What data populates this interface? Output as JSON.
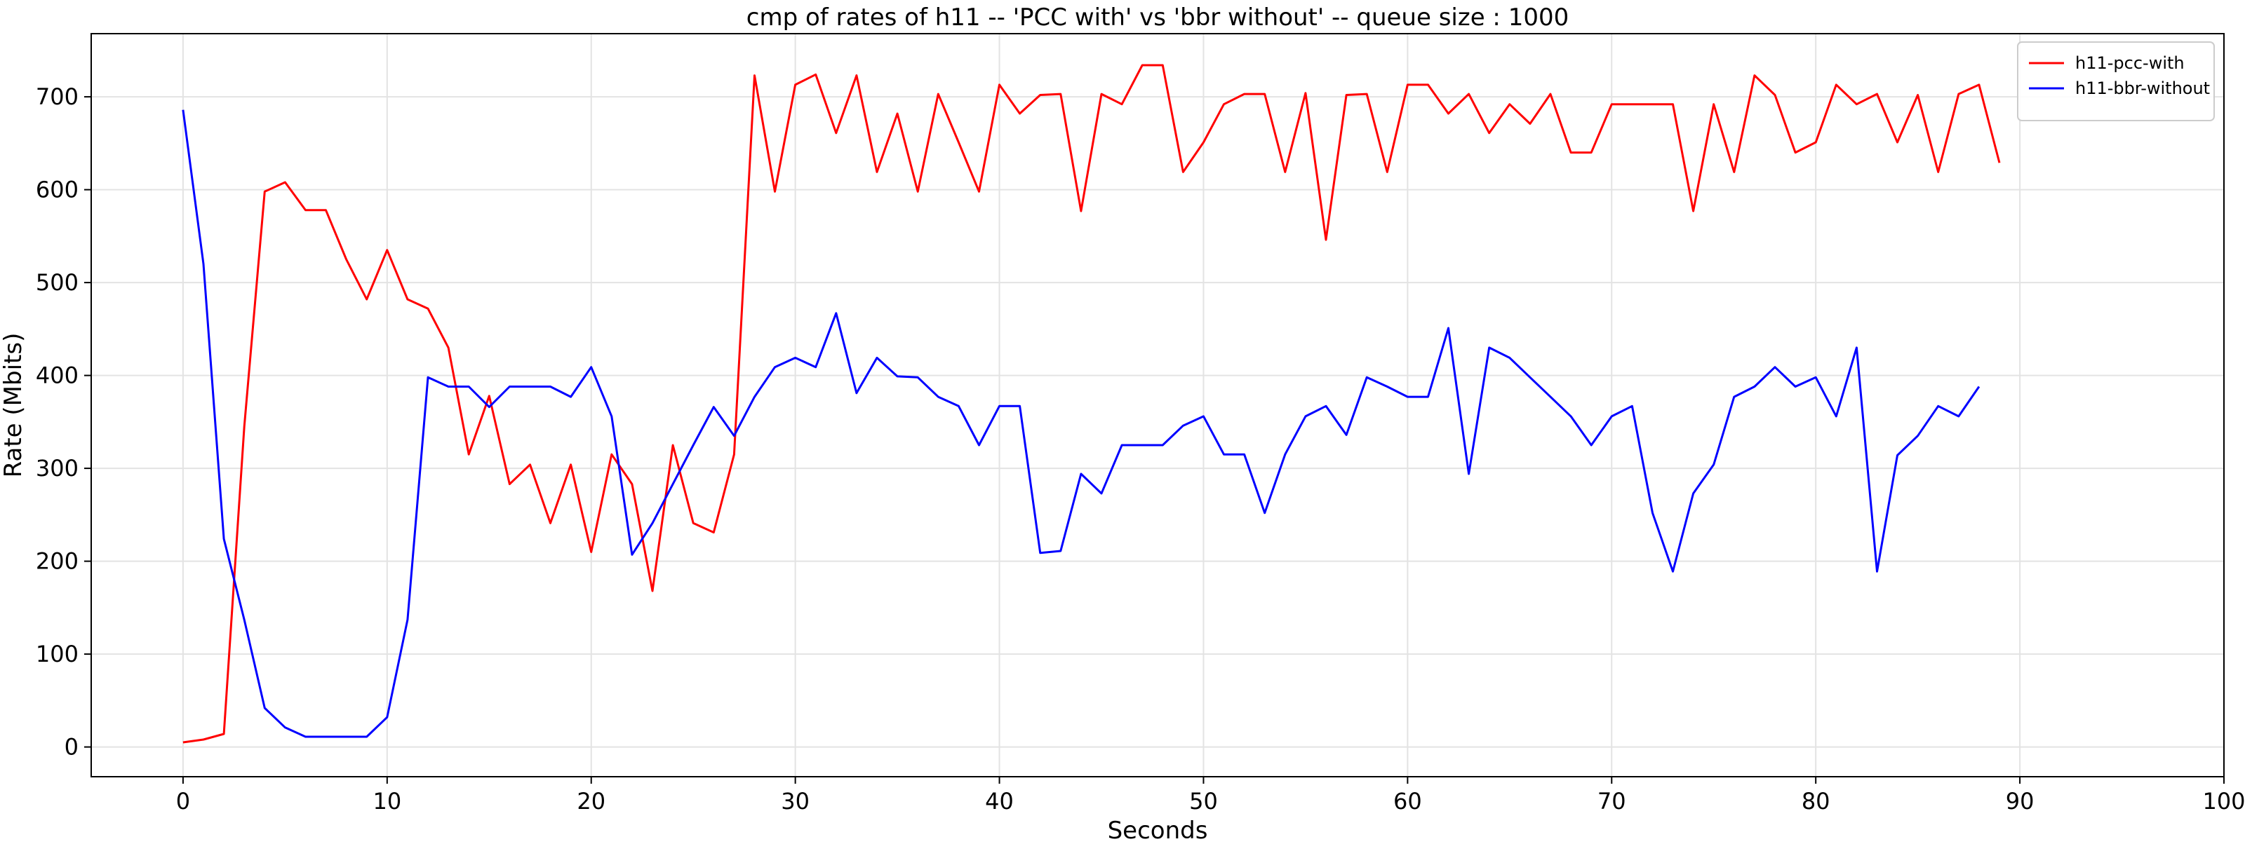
{
  "chart_data": {
    "type": "line",
    "title": "cmp of rates of h11 -- 'PCC with' vs 'bbr without' -- queue size : 1000",
    "xlabel": "Seconds",
    "ylabel": "Rate (Mbits)",
    "xlim": [
      -4.5,
      100
    ],
    "ylim": [
      -32,
      768
    ],
    "xticks": [
      0,
      10,
      20,
      30,
      40,
      50,
      60,
      70,
      80,
      90,
      100
    ],
    "yticks": [
      0,
      100,
      200,
      300,
      400,
      500,
      600,
      700
    ],
    "grid": true,
    "legend_position": "top-right",
    "series": [
      {
        "name": "h11-pcc-with",
        "color": "#ff0000",
        "x": [
          0,
          1,
          2,
          3,
          4,
          5,
          6,
          7,
          8,
          9,
          10,
          11,
          12,
          13,
          14,
          15,
          16,
          17,
          18,
          19,
          20,
          21,
          22,
          23,
          24,
          25,
          26,
          27,
          28,
          29,
          30,
          31,
          32,
          33,
          34,
          35,
          36,
          37,
          38,
          39,
          40,
          41,
          42,
          43,
          44,
          45,
          46,
          47,
          48,
          49,
          50,
          51,
          52,
          53,
          54,
          55,
          56,
          57,
          58,
          59,
          60,
          61,
          62,
          63,
          64,
          65,
          66,
          67,
          68,
          69,
          70,
          71,
          72,
          73,
          74,
          75,
          76,
          77,
          78,
          79,
          80,
          81,
          82,
          83,
          84,
          85,
          86,
          87,
          88,
          89
        ],
        "y": [
          5,
          8,
          14,
          345,
          598,
          608,
          578,
          578,
          525,
          482,
          535,
          482,
          472,
          430,
          315,
          378,
          283,
          304,
          241,
          304,
          210,
          315,
          283,
          168,
          325,
          241,
          231,
          315,
          723,
          598,
          713,
          724,
          661,
          723,
          619,
          682,
          598,
          703,
          651,
          598,
          713,
          682,
          702,
          703,
          577,
          703,
          692,
          734,
          734,
          619,
          651,
          692,
          703,
          703,
          619,
          704,
          546,
          702,
          703,
          619,
          713,
          713,
          682,
          703,
          661,
          692,
          671,
          703,
          640,
          640,
          692,
          692,
          692,
          692,
          577,
          692,
          619,
          723,
          702,
          640,
          651,
          713,
          692,
          703,
          651,
          702,
          619,
          703,
          713,
          629
        ]
      },
      {
        "name": "h11-bbr-without",
        "color": "#0000ff",
        "x": [
          0,
          1,
          2,
          3,
          4,
          5,
          6,
          7,
          8,
          9,
          10,
          11,
          12,
          13,
          14,
          15,
          16,
          17,
          18,
          19,
          20,
          21,
          22,
          23,
          24,
          25,
          26,
          27,
          28,
          29,
          30,
          31,
          32,
          33,
          34,
          35,
          36,
          37,
          38,
          39,
          40,
          41,
          42,
          43,
          44,
          45,
          46,
          47,
          48,
          49,
          50,
          51,
          52,
          53,
          54,
          55,
          56,
          57,
          58,
          59,
          60,
          61,
          62,
          63,
          64,
          65,
          66,
          67,
          68,
          69,
          70,
          71,
          72,
          73,
          74,
          75,
          76,
          77,
          78,
          79,
          80,
          81,
          82,
          83,
          84,
          85,
          86,
          87,
          88
        ],
        "y": [
          686,
          520,
          224,
          137,
          42,
          21,
          11,
          11,
          11,
          11,
          32,
          137,
          398,
          388,
          388,
          366,
          388,
          388,
          388,
          377,
          409,
          356,
          207,
          241,
          283,
          325,
          366,
          335,
          377,
          409,
          419,
          409,
          467,
          381,
          419,
          399,
          398,
          377,
          367,
          325,
          367,
          367,
          209,
          211,
          294,
          273,
          325,
          325,
          325,
          346,
          356,
          315,
          315,
          252,
          315,
          356,
          367,
          336,
          398,
          388,
          377,
          377,
          451,
          294,
          430,
          419,
          398,
          377,
          356,
          325,
          356,
          367,
          252,
          189,
          273,
          304,
          377,
          388,
          409,
          388,
          398,
          356,
          430,
          189,
          314,
          335,
          367,
          356,
          388
        ]
      }
    ]
  }
}
